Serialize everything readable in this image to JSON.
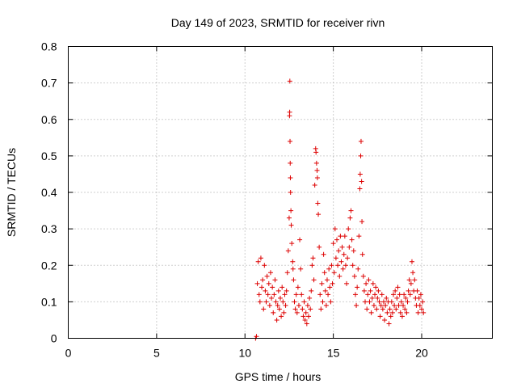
{
  "chart_data": {
    "type": "scatter",
    "title": "Day 149 of 2023, SRMTID for receiver rivn",
    "xlabel": "GPS time / hours",
    "ylabel": "SRMTID / TECUs",
    "xlim": [
      0,
      24
    ],
    "ylim": [
      0,
      0.8
    ],
    "x_ticks": [
      0,
      5,
      10,
      15,
      20
    ],
    "x_tick_labels": [
      "0",
      "5",
      "10",
      "15",
      "20"
    ],
    "y_ticks": [
      0,
      0.1,
      0.2,
      0.3,
      0.4,
      0.5,
      0.6,
      0.7,
      0.8
    ],
    "y_tick_labels": [
      "0",
      "0.1",
      "0.2",
      "0.3",
      "0.4",
      "0.5",
      "0.6",
      "0.7",
      "0.8"
    ],
    "grid": true,
    "marker": "plus",
    "marker_color": "#dd0000",
    "series": [
      {
        "name": "SRMTID",
        "points": [
          [
            10.6,
            0.0
          ],
          [
            10.65,
            0.005
          ],
          [
            10.7,
            0.15
          ],
          [
            10.75,
            0.21
          ],
          [
            10.8,
            0.12
          ],
          [
            10.85,
            0.1
          ],
          [
            10.9,
            0.22
          ],
          [
            10.95,
            0.14
          ],
          [
            11.0,
            0.16
          ],
          [
            11.05,
            0.08
          ],
          [
            11.1,
            0.2
          ],
          [
            11.15,
            0.13
          ],
          [
            11.2,
            0.1
          ],
          [
            11.25,
            0.17
          ],
          [
            11.3,
            0.12
          ],
          [
            11.35,
            0.15
          ],
          [
            11.4,
            0.09
          ],
          [
            11.45,
            0.18
          ],
          [
            11.5,
            0.11
          ],
          [
            11.55,
            0.14
          ],
          [
            11.6,
            0.07
          ],
          [
            11.65,
            0.12
          ],
          [
            11.7,
            0.16
          ],
          [
            11.75,
            0.1
          ],
          [
            11.8,
            0.05
          ],
          [
            11.85,
            0.09
          ],
          [
            11.9,
            0.13
          ],
          [
            11.95,
            0.08
          ],
          [
            12.0,
            0.11
          ],
          [
            12.05,
            0.06
          ],
          [
            12.1,
            0.14
          ],
          [
            12.15,
            0.1
          ],
          [
            12.2,
            0.07
          ],
          [
            12.25,
            0.12
          ],
          [
            12.3,
            0.09
          ],
          [
            12.35,
            0.13
          ],
          [
            12.4,
            0.18
          ],
          [
            12.45,
            0.24
          ],
          [
            12.5,
            0.33
          ],
          [
            12.52,
            0.61
          ],
          [
            12.53,
            0.62
          ],
          [
            12.54,
            0.705
          ],
          [
            12.55,
            0.54
          ],
          [
            12.56,
            0.48
          ],
          [
            12.57,
            0.44
          ],
          [
            12.58,
            0.4
          ],
          [
            12.6,
            0.35
          ],
          [
            12.62,
            0.31
          ],
          [
            12.65,
            0.26
          ],
          [
            12.7,
            0.21
          ],
          [
            12.72,
            0.19
          ],
          [
            12.75,
            0.16
          ],
          [
            12.8,
            0.1
          ],
          [
            12.85,
            0.08
          ],
          [
            12.9,
            0.12
          ],
          [
            12.95,
            0.07
          ],
          [
            13.0,
            0.14
          ],
          [
            13.05,
            0.09
          ],
          [
            13.1,
            0.27
          ],
          [
            13.15,
            0.19
          ],
          [
            13.2,
            0.12
          ],
          [
            13.25,
            0.08
          ],
          [
            13.3,
            0.06
          ],
          [
            13.35,
            0.1
          ],
          [
            13.4,
            0.05
          ],
          [
            13.45,
            0.07
          ],
          [
            13.5,
            0.04
          ],
          [
            13.55,
            0.09
          ],
          [
            13.6,
            0.06
          ],
          [
            13.65,
            0.11
          ],
          [
            13.7,
            0.08
          ],
          [
            13.75,
            0.13
          ],
          [
            13.8,
            0.2
          ],
          [
            13.85,
            0.22
          ],
          [
            13.9,
            0.16
          ],
          [
            13.95,
            0.42
          ],
          [
            14.0,
            0.52
          ],
          [
            14.02,
            0.51
          ],
          [
            14.05,
            0.48
          ],
          [
            14.08,
            0.46
          ],
          [
            14.1,
            0.44
          ],
          [
            14.12,
            0.37
          ],
          [
            14.15,
            0.34
          ],
          [
            14.2,
            0.25
          ],
          [
            14.25,
            0.12
          ],
          [
            14.3,
            0.08
          ],
          [
            14.35,
            0.15
          ],
          [
            14.4,
            0.1
          ],
          [
            14.45,
            0.23
          ],
          [
            14.5,
            0.18
          ],
          [
            14.55,
            0.13
          ],
          [
            14.6,
            0.09
          ],
          [
            14.65,
            0.16
          ],
          [
            14.7,
            0.12
          ],
          [
            14.75,
            0.19
          ],
          [
            14.8,
            0.14
          ],
          [
            14.85,
            0.1
          ],
          [
            14.9,
            0.2
          ],
          [
            14.95,
            0.15
          ],
          [
            15.0,
            0.26
          ],
          [
            15.05,
            0.18
          ],
          [
            15.1,
            0.3
          ],
          [
            15.15,
            0.22
          ],
          [
            15.2,
            0.27
          ],
          [
            15.25,
            0.2
          ],
          [
            15.3,
            0.24
          ],
          [
            15.35,
            0.17
          ],
          [
            15.4,
            0.28
          ],
          [
            15.45,
            0.21
          ],
          [
            15.5,
            0.25
          ],
          [
            15.55,
            0.19
          ],
          [
            15.6,
            0.23
          ],
          [
            15.65,
            0.28
          ],
          [
            15.7,
            0.2
          ],
          [
            15.75,
            0.15
          ],
          [
            15.8,
            0.22
          ],
          [
            15.85,
            0.3
          ],
          [
            15.9,
            0.25
          ],
          [
            15.95,
            0.33
          ],
          [
            16.0,
            0.35
          ],
          [
            16.05,
            0.27
          ],
          [
            16.1,
            0.2
          ],
          [
            16.15,
            0.24
          ],
          [
            16.2,
            0.17
          ],
          [
            16.25,
            0.12
          ],
          [
            16.3,
            0.09
          ],
          [
            16.35,
            0.14
          ],
          [
            16.4,
            0.19
          ],
          [
            16.45,
            0.28
          ],
          [
            16.5,
            0.41
          ],
          [
            16.52,
            0.45
          ],
          [
            16.55,
            0.5
          ],
          [
            16.57,
            0.54
          ],
          [
            16.6,
            0.43
          ],
          [
            16.62,
            0.32
          ],
          [
            16.65,
            0.23
          ],
          [
            16.7,
            0.17
          ],
          [
            16.75,
            0.13
          ],
          [
            16.8,
            0.1
          ],
          [
            16.85,
            0.15
          ],
          [
            16.9,
            0.08
          ],
          [
            16.95,
            0.12
          ],
          [
            17.0,
            0.16
          ],
          [
            17.05,
            0.1
          ],
          [
            17.1,
            0.13
          ],
          [
            17.15,
            0.07
          ],
          [
            17.2,
            0.11
          ],
          [
            17.25,
            0.15
          ],
          [
            17.3,
            0.09
          ],
          [
            17.35,
            0.12
          ],
          [
            17.4,
            0.14
          ],
          [
            17.45,
            0.08
          ],
          [
            17.5,
            0.11
          ],
          [
            17.55,
            0.13
          ],
          [
            17.6,
            0.1
          ],
          [
            17.65,
            0.06
          ],
          [
            17.7,
            0.09
          ],
          [
            17.75,
            0.12
          ],
          [
            17.8,
            0.08
          ],
          [
            17.85,
            0.1
          ],
          [
            17.9,
            0.05
          ],
          [
            17.95,
            0.09
          ],
          [
            18.0,
            0.11
          ],
          [
            18.05,
            0.07
          ],
          [
            18.1,
            0.1
          ],
          [
            18.15,
            0.04
          ],
          [
            18.2,
            0.08
          ],
          [
            18.25,
            0.06
          ],
          [
            18.3,
            0.1
          ],
          [
            18.35,
            0.07
          ],
          [
            18.4,
            0.12
          ],
          [
            18.45,
            0.09
          ],
          [
            18.5,
            0.13
          ],
          [
            18.55,
            0.08
          ],
          [
            18.6,
            0.11
          ],
          [
            18.65,
            0.14
          ],
          [
            18.7,
            0.09
          ],
          [
            18.75,
            0.12
          ],
          [
            18.8,
            0.07
          ],
          [
            18.85,
            0.1
          ],
          [
            18.9,
            0.06
          ],
          [
            18.95,
            0.09
          ],
          [
            19.0,
            0.12
          ],
          [
            19.05,
            0.08
          ],
          [
            19.1,
            0.11
          ],
          [
            19.15,
            0.07
          ],
          [
            19.2,
            0.1
          ],
          [
            19.25,
            0.13
          ],
          [
            19.3,
            0.16
          ],
          [
            19.35,
            0.12
          ],
          [
            19.4,
            0.15
          ],
          [
            19.45,
            0.21
          ],
          [
            19.5,
            0.18
          ],
          [
            19.55,
            0.13
          ],
          [
            19.6,
            0.16
          ],
          [
            19.65,
            0.11
          ],
          [
            19.7,
            0.09
          ],
          [
            19.75,
            0.13
          ],
          [
            19.8,
            0.07
          ],
          [
            19.85,
            0.11
          ],
          [
            19.9,
            0.09
          ],
          [
            19.95,
            0.12
          ],
          [
            20.0,
            0.08
          ],
          [
            20.05,
            0.1
          ],
          [
            20.1,
            0.07
          ]
        ]
      }
    ]
  }
}
